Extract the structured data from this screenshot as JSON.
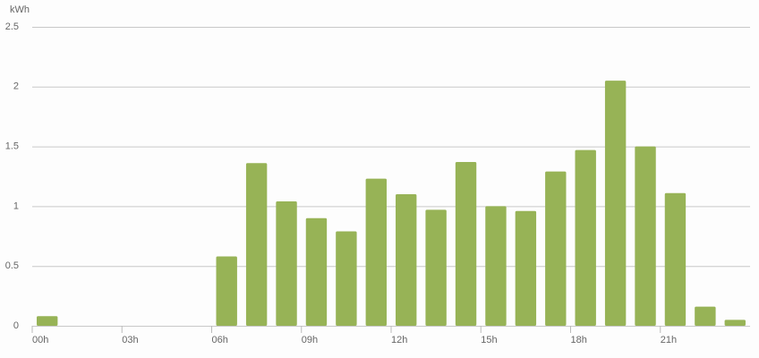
{
  "chart_data": {
    "type": "bar",
    "y_label": "kWh",
    "categories": [
      "00h",
      null,
      null,
      "03h",
      null,
      null,
      "06h",
      null,
      null,
      "09h",
      null,
      null,
      "12h",
      null,
      null,
      "15h",
      null,
      null,
      "18h",
      null,
      null,
      "21h",
      null,
      null
    ],
    "values": [
      0.08,
      0,
      0,
      0,
      0,
      0,
      0.58,
      1.36,
      1.04,
      0.9,
      0.79,
      1.23,
      1.1,
      0.97,
      1.37,
      1.0,
      0.96,
      1.29,
      1.47,
      2.05,
      1.5,
      1.11,
      0.16,
      0.05
    ],
    "color": "#97b356",
    "ylim": [
      0,
      2.5
    ],
    "yticks": [
      0,
      0.5,
      1,
      1.5,
      2,
      2.5
    ],
    "grid": true
  }
}
